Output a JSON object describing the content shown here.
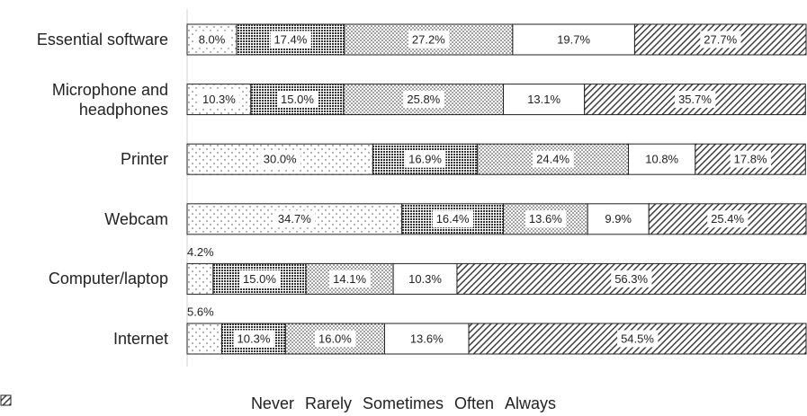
{
  "chart_data": {
    "type": "stacked-barh",
    "categories": [
      "Essential software",
      "Microphone and headphones",
      "Printer",
      "Webcam",
      "Computer/laptop",
      "Internet"
    ],
    "xlim": [
      0,
      100
    ],
    "series": [
      {
        "name": "Never",
        "values": [
          8.0,
          10.3,
          30.0,
          34.7,
          4.2,
          5.6
        ],
        "value_labels": [
          "8.0%",
          "10.3%",
          "30.0%",
          "34.7%",
          "4.2%",
          "5.6%"
        ]
      },
      {
        "name": "Rarely",
        "values": [
          17.4,
          15.0,
          16.9,
          16.4,
          15.0,
          10.3
        ],
        "value_labels": [
          "17.4%",
          "15.0%",
          "16.9%",
          "16.4%",
          "15.0%",
          "10.3%"
        ]
      },
      {
        "name": "Sometimes",
        "values": [
          27.2,
          25.8,
          24.4,
          13.6,
          14.1,
          16.0
        ],
        "value_labels": [
          "27.2%",
          "25.8%",
          "24.4%",
          "13.6%",
          "14.1%",
          "16.0%"
        ]
      },
      {
        "name": "Often",
        "values": [
          19.7,
          13.1,
          10.8,
          9.9,
          10.3,
          13.6
        ],
        "value_labels": [
          "19.7%",
          "13.1%",
          "10.8%",
          "9.9%",
          "10.3%",
          "13.6%"
        ]
      },
      {
        "name": "Always",
        "values": [
          27.7,
          35.7,
          17.8,
          25.4,
          56.3,
          54.5
        ],
        "value_labels": [
          "27.7%",
          "35.7%",
          "17.8%",
          "25.4%",
          "56.3%",
          "54.5%"
        ]
      }
    ]
  }
}
